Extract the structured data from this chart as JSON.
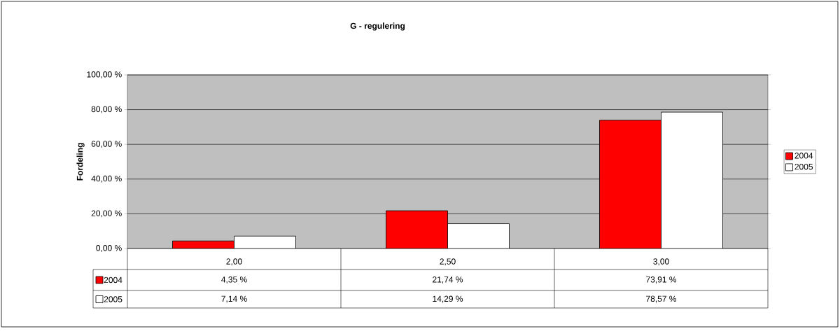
{
  "chart_data": {
    "type": "bar",
    "title": "G - regulering",
    "ylabel": "Fordeling",
    "categories": [
      "2,00",
      "2,50",
      "3,00"
    ],
    "series": [
      {
        "name": "2004",
        "color": "#ff0000",
        "values": [
          4.35,
          21.74,
          73.91
        ],
        "value_labels": [
          "4,35 %",
          "21,74 %",
          "73,91 %"
        ]
      },
      {
        "name": "2005",
        "color": "#ffffff",
        "values": [
          7.14,
          14.29,
          78.57
        ],
        "value_labels": [
          "7,14 %",
          "14,29 %",
          "78,57 %"
        ]
      }
    ],
    "ylim": [
      0,
      100
    ],
    "yticks": [
      {
        "value": 0,
        "label": "0,00 %"
      },
      {
        "value": 20,
        "label": "20,00 %"
      },
      {
        "value": 40,
        "label": "40,00 %"
      },
      {
        "value": 60,
        "label": "60,00 %"
      },
      {
        "value": 80,
        "label": "80,00 %"
      },
      {
        "value": 100,
        "label": "100,00 %"
      }
    ],
    "grid": "y",
    "legend": "right"
  }
}
